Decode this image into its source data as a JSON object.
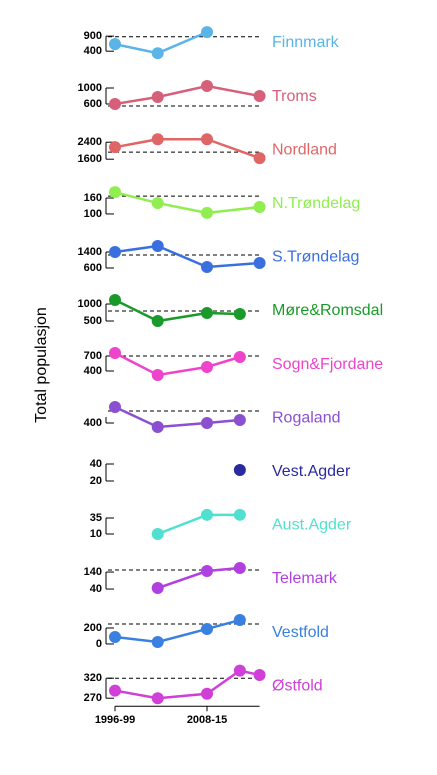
{
  "ylabel": "Total populasjon",
  "xlim": [
    1994,
    2022
  ],
  "xticks": [
    {
      "value": 1997.5,
      "label": "1996-99"
    },
    {
      "value": 2011.5,
      "label": "2008-15"
    }
  ],
  "chart_data": [
    {
      "type": "line",
      "title": "Finnmark",
      "color": "#5ab4e8",
      "x": [
        1997.5,
        2004,
        2011.5
      ],
      "values": [
        633,
        333,
        1033
      ],
      "hline": 880,
      "ylim": [
        140,
        1270
      ],
      "yticks": [
        400,
        900
      ]
    },
    {
      "type": "line",
      "title": "Troms",
      "color": "#d6607a",
      "x": [
        1997.5,
        2004,
        2011.5,
        2019.5
      ],
      "values": [
        600,
        775,
        1050,
        800
      ],
      "hline": 550,
      "ylim": [
        385,
        1235
      ],
      "yticks": [
        600,
        1000
      ]
    },
    {
      "type": "line",
      "title": "Nordland",
      "color": "#e06666",
      "x": [
        1997.5,
        2004,
        2011.5,
        2019.5
      ],
      "values": [
        2165,
        2540,
        2540,
        1650
      ],
      "hline": 1930,
      "ylim": [
        1270,
        2870
      ],
      "yticks": [
        1600,
        2400
      ]
    },
    {
      "type": "line",
      "title": "N.Trøndelag",
      "color": "#90ee50",
      "x": [
        1997.5,
        2004,
        2011.5,
        2019.5
      ],
      "values": [
        182,
        141,
        104,
        126
      ],
      "hline": 167,
      "ylim": [
        78,
        206
      ],
      "yticks": [
        100,
        160
      ]
    },
    {
      "type": "line",
      "title": "S.Trøndelag",
      "color": "#3a6fe0",
      "x": [
        1997.5,
        2004,
        2011.5,
        2019.5
      ],
      "values": [
        1400,
        1700,
        650,
        850
      ],
      "hline": 1250,
      "ylim": [
        330,
        2030
      ],
      "yticks": [
        600,
        1400
      ]
    },
    {
      "type": "line",
      "title": "Møre&Romsdal",
      "color": "#1a9a2a",
      "x": [
        1997.5,
        2004,
        2011.5,
        2016.5
      ],
      "values": [
        1118,
        500,
        735,
        706
      ],
      "hline": 794,
      "ylim": [
        324,
        1324
      ],
      "yticks": [
        500,
        1000
      ]
    },
    {
      "type": "line",
      "title": "Sogn&Fjordane",
      "color": "#ee44cc",
      "x": [
        1997.5,
        2004,
        2011.5,
        2016.5
      ],
      "values": [
        760,
        320,
        480,
        680
      ],
      "hline": 700,
      "ylim": [
        208,
        888
      ],
      "yticks": [
        400,
        700
      ]
    },
    {
      "type": "line",
      "title": "Rogaland",
      "color": "#8a50d0",
      "x": [
        1997.5,
        2004,
        2011.5,
        2016.5
      ],
      "values": [
        880,
        280,
        400,
        490
      ],
      "hline": 760,
      "ylim": [
        64,
        1084
      ],
      "yticks": [
        400
      ]
    },
    {
      "type": "line",
      "title": "Vest.Agder",
      "color": "#2a2aa0",
      "x": [
        2016.5
      ],
      "values": [
        33
      ],
      "ylim": [
        12,
        52
      ],
      "yticks": [
        20,
        40
      ]
    },
    {
      "type": "line",
      "title": "Aust.Agder",
      "color": "#50e0d0",
      "x": [
        2004,
        2011.5,
        2016.5
      ],
      "values": [
        10,
        40,
        40
      ],
      "ylim": [
        -1.6,
        51.6
      ],
      "yticks": [
        10,
        35
      ]
    },
    {
      "type": "line",
      "title": "Telemark",
      "color": "#b040e0",
      "x": [
        2004,
        2011.5,
        2016.5
      ],
      "values": [
        46,
        146,
        164
      ],
      "hline": 152,
      "ylim": [
        5,
        205
      ],
      "yticks": [
        40,
        140
      ]
    },
    {
      "type": "line",
      "title": "Vestfold",
      "color": "#3a80e0",
      "x": [
        1997.5,
        2004,
        2011.5,
        2016.5
      ],
      "values": [
        88,
        25,
        188,
        300
      ],
      "hline": 250,
      "ylim": [
        -58,
        368
      ],
      "yticks": [
        0,
        200
      ]
    },
    {
      "type": "line",
      "title": "Østfold",
      "color": "#d040d8",
      "x": [
        1997.5,
        2004,
        2011.5,
        2016.5,
        2019.5
      ],
      "values": [
        289,
        270,
        281,
        339,
        328
      ],
      "hline": 320,
      "ylim": [
        260,
        345
      ],
      "yticks": [
        270,
        320
      ]
    }
  ]
}
